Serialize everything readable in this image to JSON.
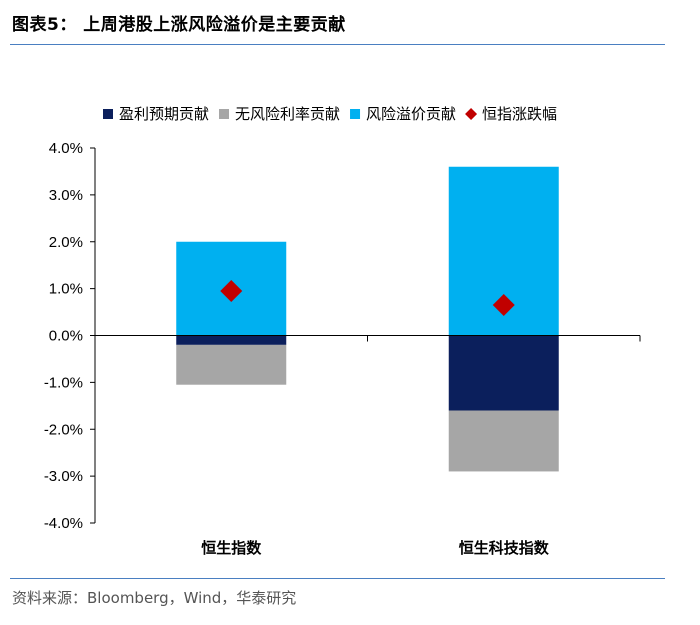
{
  "header": {
    "title": "图表5：  上周港股上涨风险溢价是主要贡献"
  },
  "footer": {
    "source": "资料来源：Bloomberg，Wind，华泰研究"
  },
  "colors": {
    "earnings": "#0b1f5c",
    "riskfree": "#a6a6a6",
    "riskpremium": "#00b0f0",
    "index": "#c00000",
    "axis": "#000000",
    "rule": "#4a7fc1"
  },
  "chart_data": {
    "type": "bar",
    "stacked": true,
    "categories": [
      "恒生指数",
      "恒生科技指数"
    ],
    "series": [
      {
        "name": "盈利预期贡献",
        "key": "earnings",
        "values": [
          -0.2,
          -1.6
        ]
      },
      {
        "name": "无风险利率贡献",
        "key": "riskfree",
        "values": [
          -0.85,
          -1.3
        ]
      },
      {
        "name": "风险溢价贡献",
        "key": "riskpremium",
        "values": [
          2.0,
          3.6
        ]
      },
      {
        "name": "恒指涨跌幅",
        "key": "index",
        "type": "marker",
        "marker": "diamond",
        "values": [
          0.95,
          0.65
        ]
      }
    ],
    "yticks": [
      "4.0%",
      "3.0%",
      "2.0%",
      "1.0%",
      "0.0%",
      "-1.0%",
      "-2.0%",
      "-3.0%",
      "-4.0%"
    ],
    "ylim": [
      -4,
      4
    ],
    "ylabel": "",
    "xlabel": "",
    "legend_position": "top",
    "grid": false
  }
}
